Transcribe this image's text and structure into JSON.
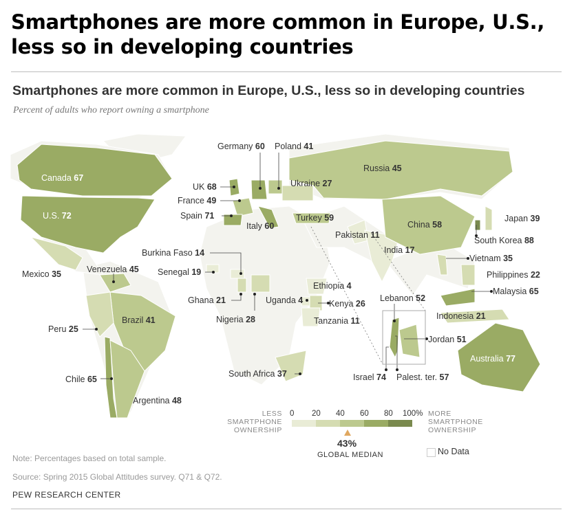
{
  "title": "Smartphones are more common in Europe, U.S., less so in developing countries",
  "chart": {
    "title": "Smartphones are more common in Europe, U.S., less so in developing countries",
    "subtitle": "Percent of adults who report owning a smartphone"
  },
  "countries": [
    {
      "name": "Canada",
      "value": 67
    },
    {
      "name": "U.S.",
      "value": 72
    },
    {
      "name": "Mexico",
      "value": 35
    },
    {
      "name": "Venezuela",
      "value": 45
    },
    {
      "name": "Brazil",
      "value": 41
    },
    {
      "name": "Peru",
      "value": 25
    },
    {
      "name": "Chile",
      "value": 65
    },
    {
      "name": "Argentina",
      "value": 48
    },
    {
      "name": "Germany",
      "value": 60
    },
    {
      "name": "Poland",
      "value": 41
    },
    {
      "name": "UK",
      "value": 68
    },
    {
      "name": "France",
      "value": 49
    },
    {
      "name": "Spain",
      "value": 71
    },
    {
      "name": "Italy",
      "value": 60
    },
    {
      "name": "Russia",
      "value": 45
    },
    {
      "name": "Ukraine",
      "value": 27
    },
    {
      "name": "Turkey",
      "value": 59
    },
    {
      "name": "Burkina Faso",
      "value": 14
    },
    {
      "name": "Senegal",
      "value": 19
    },
    {
      "name": "Ghana",
      "value": 21
    },
    {
      "name": "Nigeria",
      "value": 28
    },
    {
      "name": "Uganda",
      "value": 4
    },
    {
      "name": "Ethiopia",
      "value": 4
    },
    {
      "name": "Kenya",
      "value": 26
    },
    {
      "name": "Tanzania",
      "value": 11
    },
    {
      "name": "South Africa",
      "value": 37
    },
    {
      "name": "Pakistan",
      "value": 11
    },
    {
      "name": "India",
      "value": 17
    },
    {
      "name": "China",
      "value": 58
    },
    {
      "name": "Japan",
      "value": 39
    },
    {
      "name": "South Korea",
      "value": 88
    },
    {
      "name": "Vietnam",
      "value": 35
    },
    {
      "name": "Philippines",
      "value": 22
    },
    {
      "name": "Malaysia",
      "value": 65
    },
    {
      "name": "Indonesia",
      "value": 21
    },
    {
      "name": "Australia",
      "value": 77
    },
    {
      "name": "Lebanon",
      "value": 52
    },
    {
      "name": "Jordan",
      "value": 51
    },
    {
      "name": "Israel",
      "value": 74
    },
    {
      "name": "Palest. ter.",
      "value": 57
    }
  ],
  "legend": {
    "less": "LESS SMARTPHONE OWNERSHIP",
    "more": "MORE SMARTPHONE OWNERSHIP",
    "ticks": [
      "0",
      "20",
      "40",
      "60",
      "80",
      "100%"
    ],
    "bins": [
      {
        "range": "0-20",
        "color": "#e9ecd6"
      },
      {
        "range": "20-40",
        "color": "#d5dcb2"
      },
      {
        "range": "40-60",
        "color": "#bcc98e"
      },
      {
        "range": "60-80",
        "color": "#9aab64"
      },
      {
        "range": "80-100",
        "color": "#7a8a4e"
      }
    ],
    "median_value": "43%",
    "median_label": "GLOBAL MEDIAN",
    "median_marker_color": "#e0a860",
    "no_data": "No Data"
  },
  "note": "Note: Percentages based on total sample.",
  "source": "Source: Spring 2015 Global Attitudes survey. Q71 & Q72.",
  "credit": "PEW RESEARCH CENTER"
}
